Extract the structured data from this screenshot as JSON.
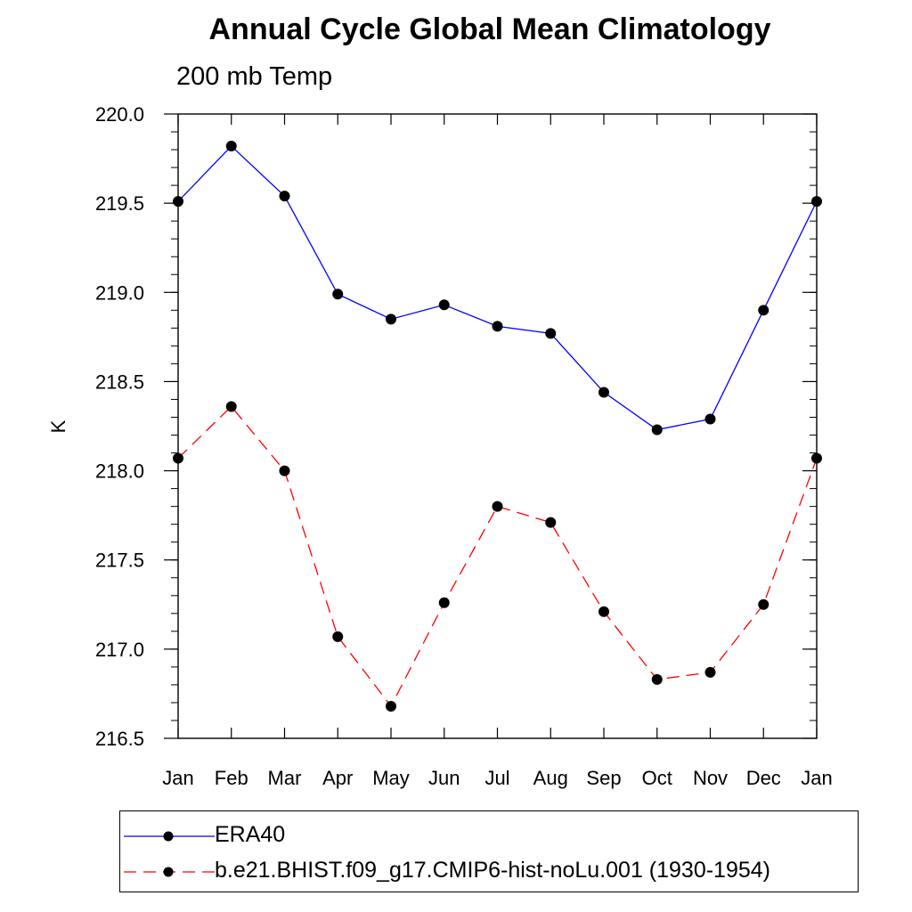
{
  "chart_data": {
    "type": "line",
    "title": "Annual Cycle Global Mean Climatology",
    "subtitle": "200 mb Temp",
    "xlabel": "",
    "ylabel": "K",
    "categories": [
      "Jan",
      "Feb",
      "Mar",
      "Apr",
      "May",
      "Jun",
      "Jul",
      "Aug",
      "Sep",
      "Oct",
      "Nov",
      "Dec",
      "Jan"
    ],
    "ylim": [
      216.5,
      220.0
    ],
    "yticks": [
      "216.5",
      "217.0",
      "217.5",
      "218.0",
      "218.5",
      "219.0",
      "219.5",
      "220.0"
    ],
    "series": [
      {
        "name": "ERA40",
        "color": "#0000ff",
        "dash": "solid",
        "values": [
          219.51,
          219.82,
          219.54,
          218.99,
          218.85,
          218.93,
          218.81,
          218.77,
          218.44,
          218.23,
          218.29,
          218.9,
          219.51
        ]
      },
      {
        "name": "b.e21.BHIST.f09_g17.CMIP6-hist-noLu.001 (1930-1954)",
        "color": "#ff0000",
        "dash": "dashed",
        "values": [
          218.07,
          218.36,
          218.0,
          217.07,
          216.68,
          217.26,
          217.8,
          217.71,
          217.21,
          216.83,
          216.87,
          217.25,
          218.07
        ]
      }
    ],
    "grid": false,
    "legend_position": "bottom"
  }
}
